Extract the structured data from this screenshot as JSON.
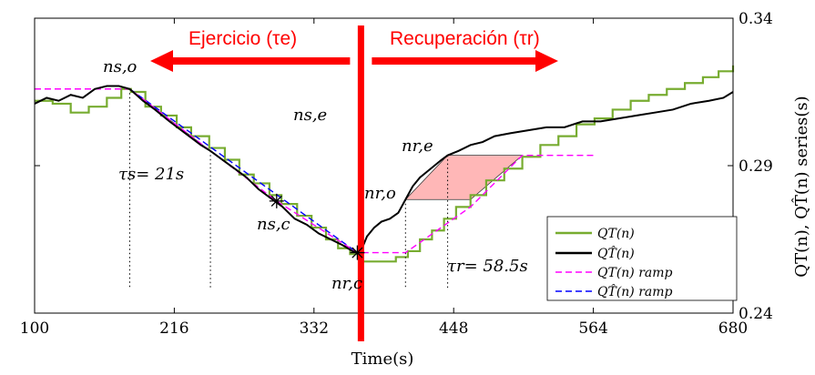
{
  "chart_data": {
    "type": "line",
    "xlabel": "Time(s)",
    "ylabel": "QT(n), QT̂(n) series(s)",
    "xlim": [
      100,
      680
    ],
    "ylim": [
      0.24,
      0.34
    ],
    "x_ticks": [
      "100",
      "216",
      "332",
      "448",
      "564",
      "680"
    ],
    "y_ticks": [
      "0.24",
      "0.29",
      "0.34"
    ],
    "y_tick_values": [
      0.24,
      0.29,
      0.34
    ],
    "grid": false,
    "legend_position": "bottom-right",
    "colors": {
      "qt": "#77ac30",
      "qt_hat": "#000000",
      "qt_ramp": "#ff00ff",
      "qt_hat_ramp": "#0000ff",
      "banner": "#ff0000",
      "fill": "#ff9999"
    },
    "banners": {
      "exercise": "Ejercicio (τe)",
      "recovery": "Recuperación (τr)"
    },
    "annotations": {
      "n_so": "ns,o",
      "n_se": "ns,e",
      "n_sc": "ns,c",
      "n_rc": "nr,c",
      "n_ro": "nr,o",
      "n_re": "nr,e",
      "tau_s": "τs= 21s",
      "tau_r": "τr= 58.5s"
    },
    "legend": [
      "QT(n)",
      "QT̂(n)",
      "QT(n) ramp",
      "QT̂(n) ramp"
    ],
    "markers": {
      "n_so": [
        179,
        0.316
      ],
      "n_se": [
        246,
        0.295
      ],
      "n_sc": [
        301,
        0.278
      ],
      "n_rc": [
        368,
        0.2605
      ],
      "n_ro": [
        408,
        0.2785
      ],
      "n_re": [
        443,
        0.2935
      ]
    },
    "exercise_change_time": 371,
    "series": [
      {
        "name": "QT(n)",
        "x": [
          100,
          115,
          130,
          145,
          160,
          172,
          180,
          192,
          205,
          218,
          230,
          245,
          258,
          270,
          282,
          295,
          305,
          318,
          330,
          342,
          352,
          362,
          372,
          385,
          400,
          410,
          420,
          430,
          440,
          450,
          462,
          475,
          490,
          505,
          520,
          535,
          550,
          565,
          580,
          595,
          610,
          625,
          640,
          655,
          668,
          680
        ],
        "y": [
          0.312,
          0.311,
          0.308,
          0.31,
          0.313,
          0.316,
          0.315,
          0.31,
          0.307,
          0.303,
          0.3,
          0.296,
          0.292,
          0.287,
          0.284,
          0.28,
          0.277,
          0.273,
          0.269,
          0.265,
          0.262,
          0.26,
          0.2575,
          0.2575,
          0.259,
          0.261,
          0.265,
          0.268,
          0.272,
          0.276,
          0.28,
          0.285,
          0.289,
          0.293,
          0.297,
          0.3,
          0.304,
          0.306,
          0.309,
          0.312,
          0.314,
          0.316,
          0.318,
          0.32,
          0.322,
          0.324
        ]
      },
      {
        "name": "QT̂(n)",
        "x": [
          100,
          110,
          120,
          130,
          140,
          150,
          160,
          170,
          179,
          190,
          200,
          212,
          225,
          238,
          246,
          256,
          266,
          276,
          286,
          296,
          306,
          316,
          326,
          336,
          346,
          356,
          364,
          368,
          372,
          376,
          382,
          388,
          395,
          402,
          408,
          414,
          420,
          426,
          432,
          438,
          443,
          452,
          462,
          472,
          482,
          495,
          510,
          525,
          540,
          555,
          570,
          585,
          600,
          615,
          630,
          645,
          660,
          672,
          680
        ],
        "y": [
          0.311,
          0.313,
          0.312,
          0.314,
          0.313,
          0.316,
          0.317,
          0.317,
          0.316,
          0.312,
          0.309,
          0.305,
          0.301,
          0.297,
          0.295,
          0.292,
          0.289,
          0.286,
          0.282,
          0.279,
          0.276,
          0.272,
          0.27,
          0.267,
          0.265,
          0.263,
          0.261,
          0.2605,
          0.262,
          0.266,
          0.269,
          0.271,
          0.272,
          0.274,
          0.2785,
          0.283,
          0.286,
          0.288,
          0.29,
          0.292,
          0.2935,
          0.295,
          0.297,
          0.298,
          0.3,
          0.301,
          0.302,
          0.303,
          0.303,
          0.305,
          0.305,
          0.306,
          0.307,
          0.308,
          0.309,
          0.311,
          0.312,
          0.313,
          0.315
        ]
      },
      {
        "name": "QT(n) ramp",
        "x": [
          100,
          179,
          246,
          301,
          368,
          408,
          462,
          505,
          564
        ],
        "y": [
          0.316,
          0.316,
          0.295,
          0.278,
          0.2605,
          0.2605,
          0.276,
          0.2935,
          0.2935
        ]
      },
      {
        "name": "QT̂(n) ramp",
        "x": [
          179,
          368
        ],
        "y": [
          0.316,
          0.2605
        ]
      }
    ]
  }
}
